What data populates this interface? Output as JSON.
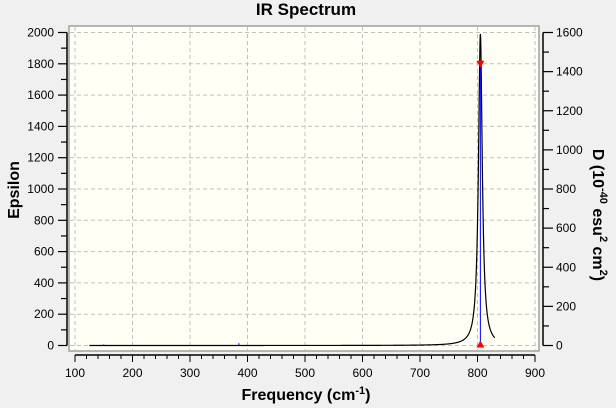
{
  "chart_data": {
    "type": "line",
    "title": "IR Spectrum",
    "xlabel": "Frequency (cm",
    "xlabel_sup": "-1",
    "xlabel_end": ")",
    "ylabel": "Epsilon",
    "y2label_parts": [
      "D (10",
      "-40",
      " esu",
      "2",
      " cm",
      "2",
      ")"
    ],
    "xlim": [
      100,
      900
    ],
    "ylim": [
      0,
      2000
    ],
    "y2lim": [
      0,
      1600
    ],
    "xticks": [
      100,
      200,
      300,
      400,
      500,
      600,
      700,
      800,
      900
    ],
    "yticks": [
      0,
      200,
      400,
      600,
      800,
      1000,
      1200,
      1400,
      1600,
      1800,
      2000
    ],
    "y2ticks": [
      0,
      200,
      400,
      600,
      800,
      1000,
      1200,
      1400,
      1600
    ],
    "grid": true,
    "spectrum": {
      "x_start": 125,
      "x_end": 830,
      "peak_center": 805,
      "peak_epsilon": 1990,
      "hwhm": 4
    },
    "sticks": [
      {
        "freq": 150,
        "D": 6
      },
      {
        "freq": 385,
        "D": 12
      },
      {
        "freq": 805,
        "D": 1440
      }
    ],
    "colors": {
      "plot_bg": "#fffff5",
      "grid": "#c0c0c0",
      "curve": "#000000",
      "stick": "#0000ff",
      "marker": "#ff0000"
    }
  }
}
